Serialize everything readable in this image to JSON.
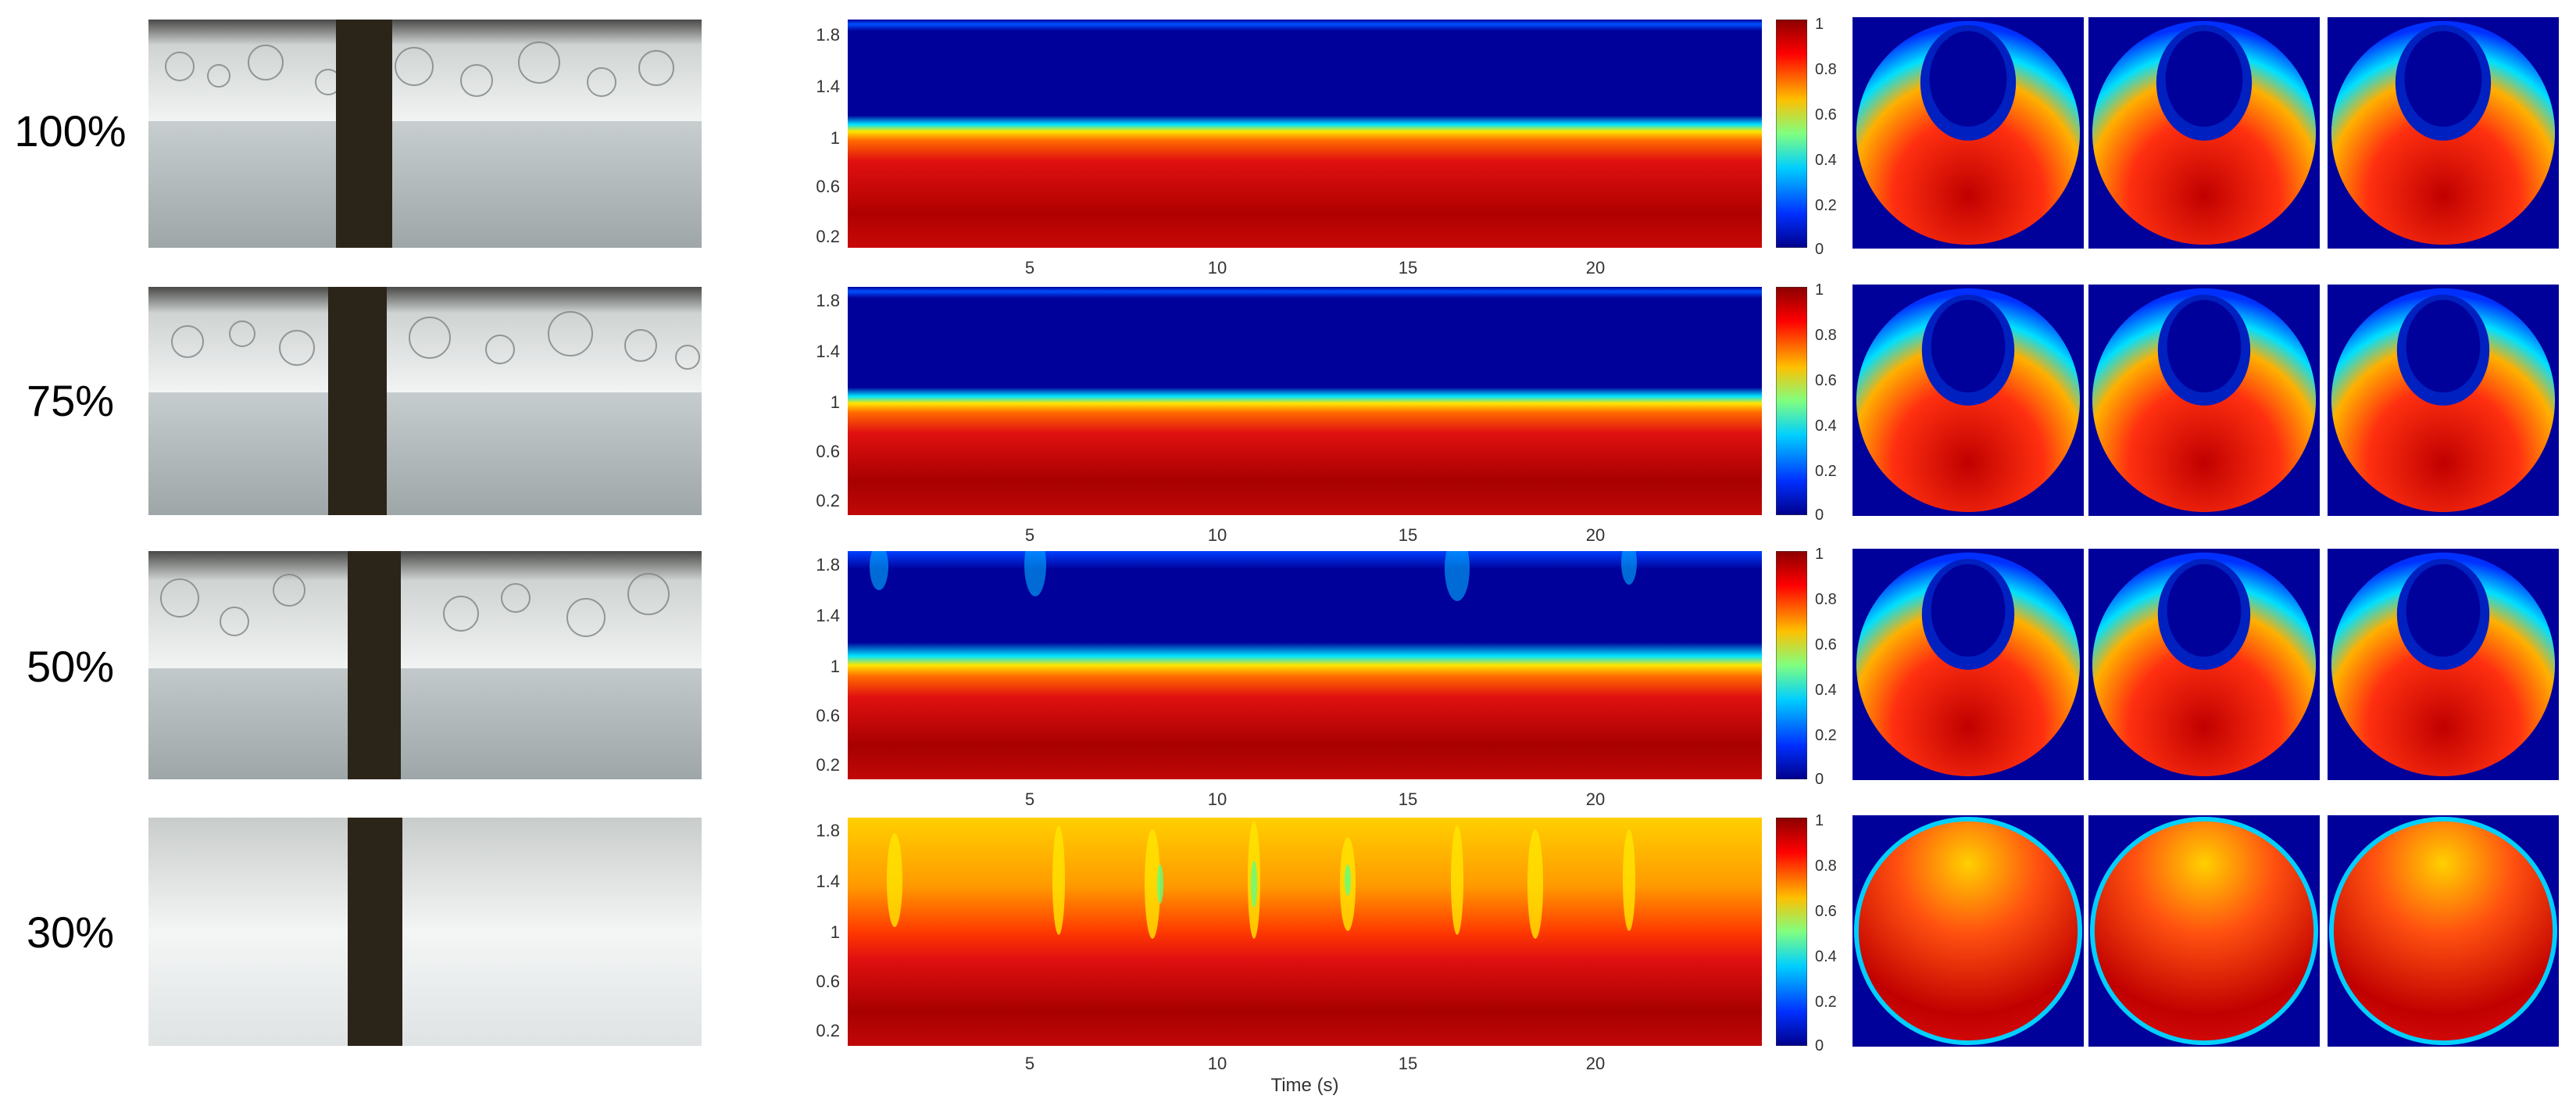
{
  "rows": [
    {
      "label": "100%",
      "interface_level": 0.95,
      "pattern": "stable"
    },
    {
      "label": "75%",
      "interface_level": 0.92,
      "pattern": "stable"
    },
    {
      "label": "50%",
      "interface_level": 0.93,
      "pattern": "wavy"
    },
    {
      "label": "30%",
      "interface_level": null,
      "pattern": "dispersed"
    }
  ],
  "timeseries": {
    "y_ticks": [
      "1.8",
      "1.4",
      "1",
      "0.6",
      "0.2"
    ],
    "x_ticks": [
      "5",
      "10",
      "15",
      "20"
    ],
    "x_label": "Time (s)"
  },
  "colorbar": {
    "ticks": [
      "1",
      "0.8",
      "0.6",
      "0.4",
      "0.2",
      "0"
    ],
    "colormap": "jet"
  },
  "colors": {
    "dark_red": "#8b0000",
    "red": "#e01010",
    "orange": "#ff9a00",
    "yellow": "#ffe600",
    "cyan": "#00e5ff",
    "blue": "#0033ff",
    "dark_blue": "#00009a"
  }
}
